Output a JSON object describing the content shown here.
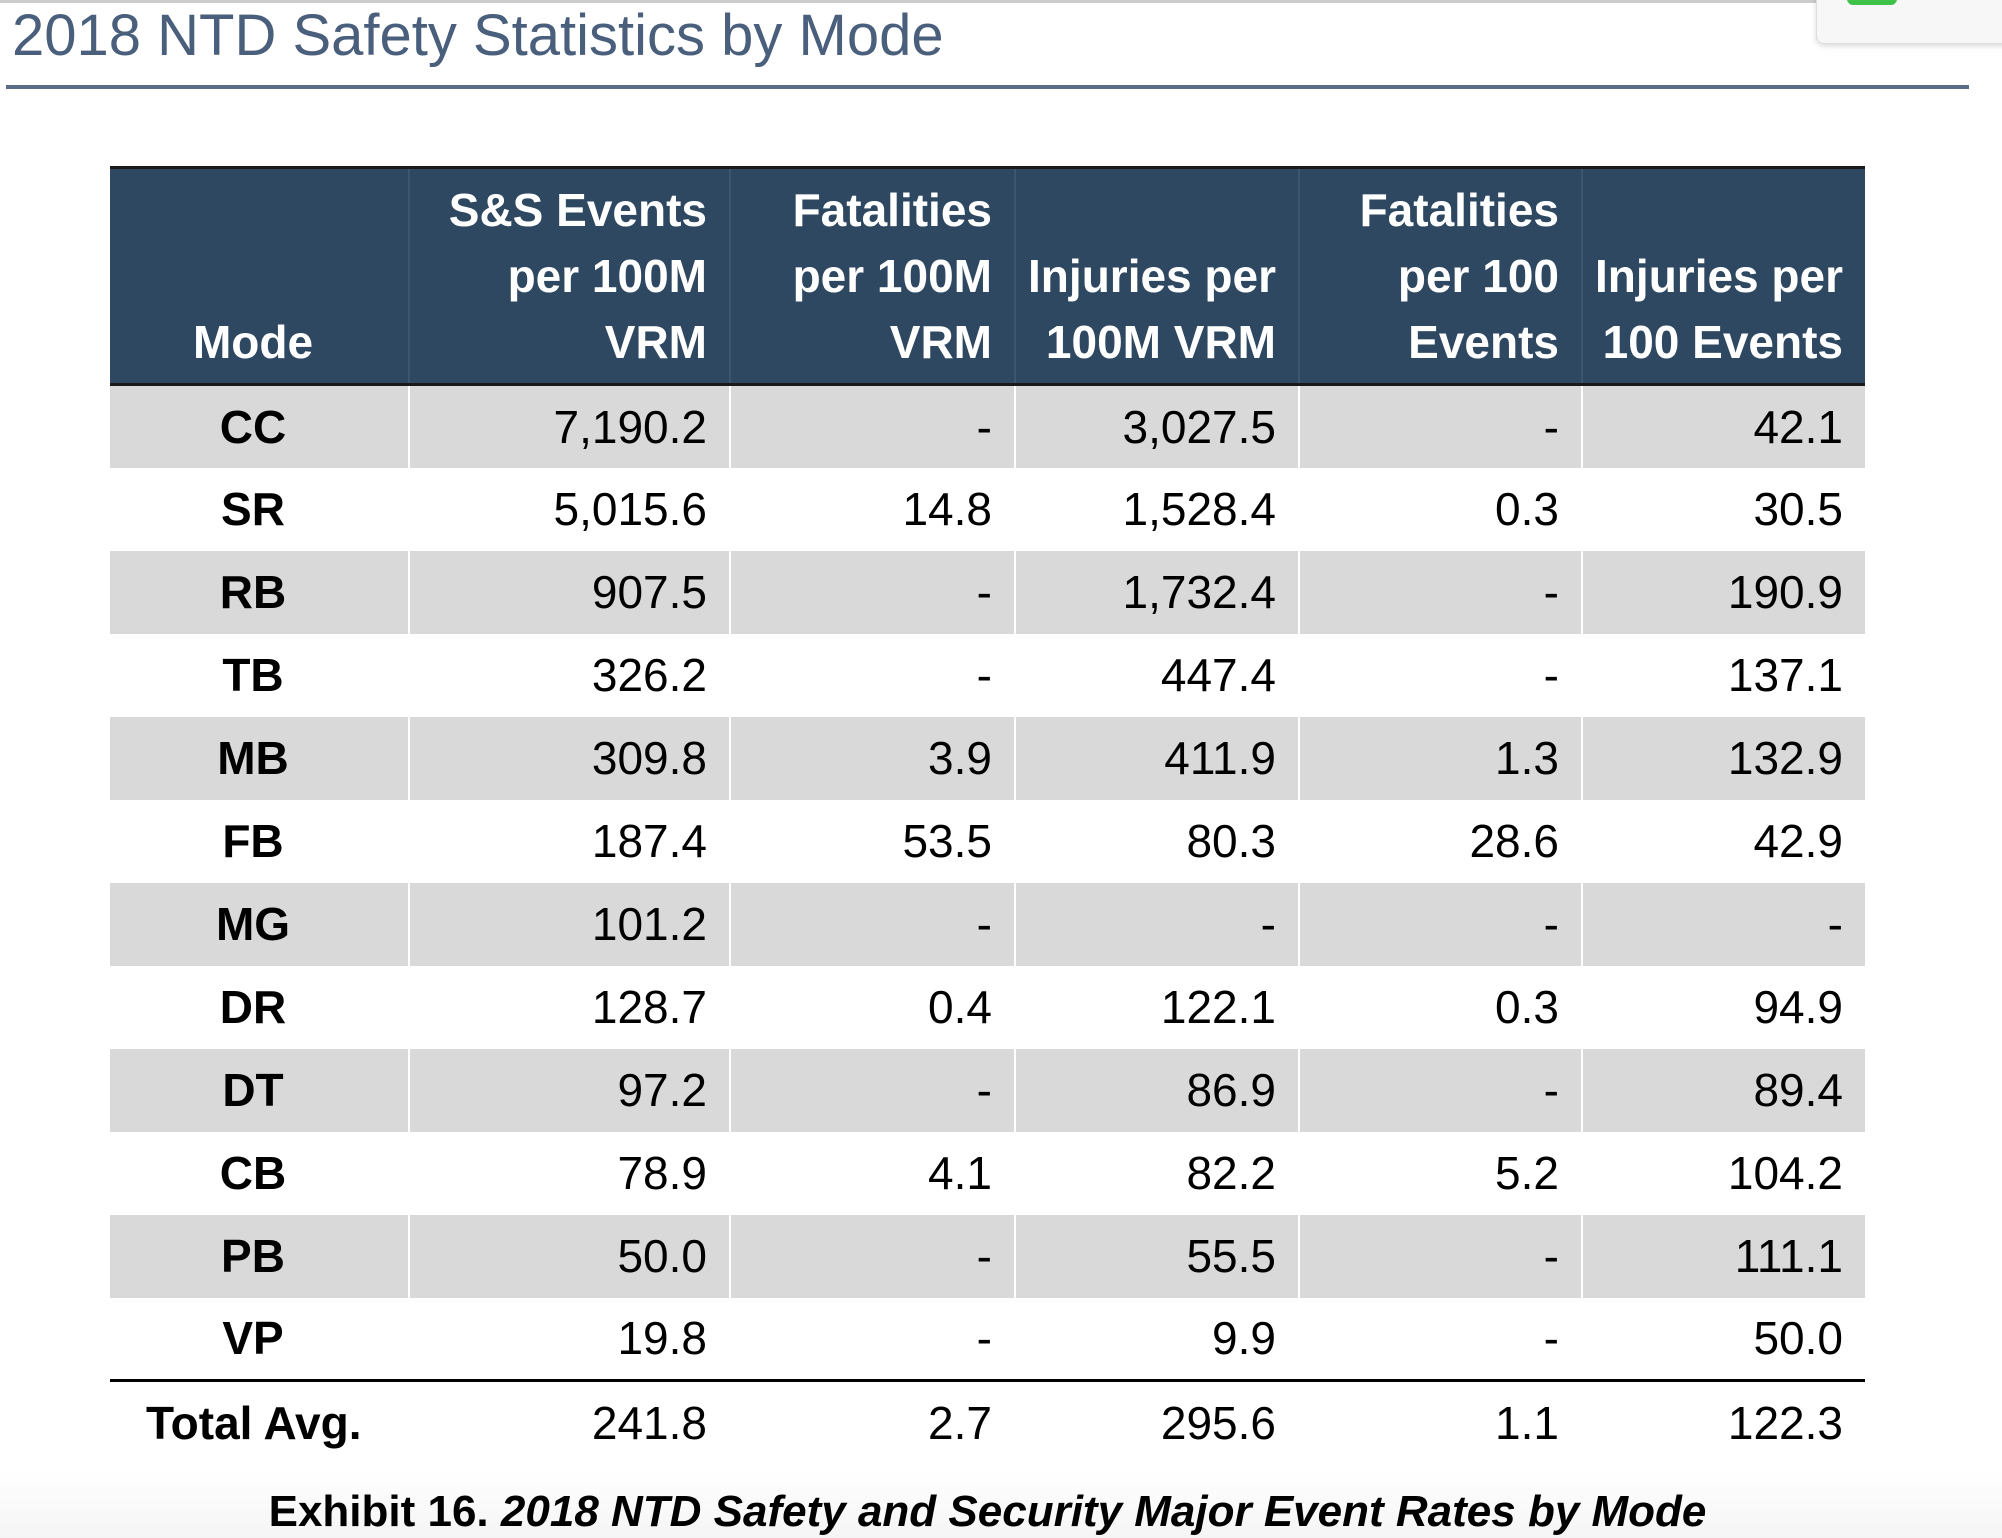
{
  "title": "2018 NTD Safety Statistics by Mode",
  "table": {
    "header": [
      "Mode",
      "S&S Events per 100M VRM",
      "Fatalities per 100M VRM",
      "Injuries per 100M VRM",
      "Fatalities per 100 Events",
      "Injuries per 100 Events"
    ],
    "rows": [
      [
        "CC",
        "7,190.2",
        "-",
        "3,027.5",
        "-",
        "42.1"
      ],
      [
        "SR",
        "5,015.6",
        "14.8",
        "1,528.4",
        "0.3",
        "30.5"
      ],
      [
        "RB",
        "907.5",
        "-",
        "1,732.4",
        "-",
        "190.9"
      ],
      [
        "TB",
        "326.2",
        "-",
        "447.4",
        "-",
        "137.1"
      ],
      [
        "MB",
        "309.8",
        "3.9",
        "411.9",
        "1.3",
        "132.9"
      ],
      [
        "FB",
        "187.4",
        "53.5",
        "80.3",
        "28.6",
        "42.9"
      ],
      [
        "MG",
        "101.2",
        "-",
        "-",
        "-",
        "-"
      ],
      [
        "DR",
        "128.7",
        "0.4",
        "122.1",
        "0.3",
        "94.9"
      ],
      [
        "DT",
        "97.2",
        "-",
        "86.9",
        "-",
        "89.4"
      ],
      [
        "CB",
        "78.9",
        "4.1",
        "82.2",
        "5.2",
        "104.2"
      ],
      [
        "PB",
        "50.0",
        "-",
        "55.5",
        "-",
        "111.1"
      ],
      [
        "VP",
        "19.8",
        "-",
        "9.9",
        "-",
        "50.0"
      ]
    ],
    "total": [
      "Total Avg.",
      "241.8",
      "2.7",
      "295.6",
      "1.1",
      "122.3"
    ]
  },
  "caption": {
    "label": "Exhibit 16.",
    "text": "2018 NTD Safety and Security Major Event Rates by Mode"
  }
}
